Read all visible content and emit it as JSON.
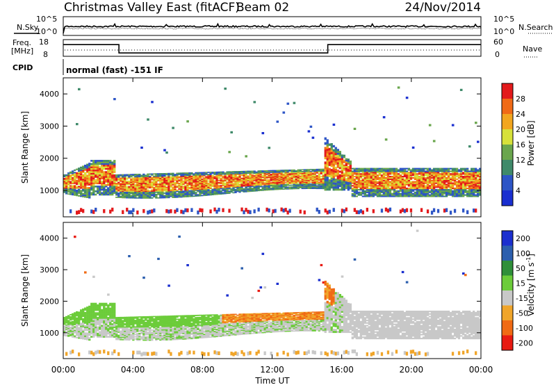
{
  "header": {
    "title": "Christmas Valley East (fitACF)",
    "beam": "Beam 02",
    "date": "24/Nov/2014"
  },
  "chart_data": [
    {
      "type": "line",
      "panel": "noise",
      "left_label": "N.Sky",
      "right_label": "N.Search",
      "left_ticks": [
        "10^5",
        "10^0"
      ],
      "right_ticks": [
        "10^5",
        "10^0"
      ]
    },
    {
      "type": "line",
      "panel": "frequency",
      "left_label": "Freq.",
      "left_unit": "[MHz]",
      "right_label": "Nave",
      "left_ticks": [
        18,
        8
      ],
      "right_ticks": [
        60,
        0
      ],
      "freq_steps": [
        {
          "from": 0.0,
          "to": 3.2,
          "mhz": 15
        },
        {
          "from": 3.2,
          "to": 15.2,
          "mhz": 10
        },
        {
          "from": 15.2,
          "to": 24.0,
          "mhz": 15
        }
      ]
    },
    {
      "type": "table",
      "panel": "cpid",
      "label": "CPID",
      "text": "normal (fast) -151 IF"
    },
    {
      "type": "heatmap",
      "panel": "power",
      "ylabel": "Slant Range [km]",
      "yticks": [
        1000,
        2000,
        3000,
        4000
      ],
      "ylim": [
        180,
        4500
      ],
      "colorbar_label": "Power [dB]",
      "colorbar_ticks": [
        4,
        8,
        12,
        16,
        20,
        24,
        28
      ],
      "colorbar_colors": [
        "#1a2fd0",
        "#2d55c6",
        "#3f8a6a",
        "#6aa64d",
        "#d7e13a",
        "#f2a61f",
        "#f06a16",
        "#e31a1c"
      ]
    },
    {
      "type": "heatmap",
      "panel": "velocity",
      "ylabel": "Slant Range [km]",
      "yticks": [
        1000,
        2000,
        3000,
        4000
      ],
      "ylim": [
        180,
        4500
      ],
      "colorbar_label": "Velocity [m s",
      "colorbar_label_sup": "-1",
      "colorbar_ticks": [
        200,
        100,
        50,
        15,
        -15,
        -50,
        -100,
        -200
      ],
      "colorbar_colors": [
        "#1b2fcf",
        "#2c5fae",
        "#2f8f3a",
        "#6ccc3a",
        "#c8c8c8",
        "#f0a52a",
        "#f06a14",
        "#e81a12"
      ]
    }
  ],
  "xaxis": {
    "ticks": [
      "00:00",
      "04:00",
      "08:00",
      "12:00",
      "16:00",
      "20:00",
      "00:00"
    ],
    "label": "Time UT"
  }
}
